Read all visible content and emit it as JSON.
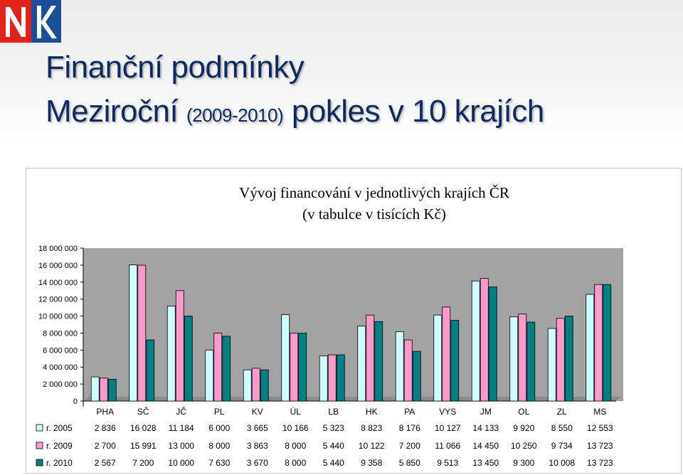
{
  "slide": {
    "title_line1": "Finanční podmínky",
    "title_line2_a": "Meziroční",
    "title_line2_b": "(2009-2010)",
    "title_line2_c": "pokles v 10 krajích"
  },
  "logo": {
    "icon": "nk-logo-icon",
    "colors": {
      "red": "#e2231a",
      "blue": "#1b4f9c"
    }
  },
  "chart_data": {
    "type": "bar",
    "title": "Vývoj financování v jednotlivých krajích ČR",
    "subtitle": "(v tabulce v tisících Kč)",
    "categories": [
      "PHA",
      "SČ",
      "JČ",
      "PL",
      "KV",
      "ÚL",
      "LB",
      "HK",
      "PA",
      "VYS",
      "JM",
      "OL",
      "ZL",
      "MS"
    ],
    "ylim": [
      0,
      18000000
    ],
    "yticks": [
      0,
      2000000,
      4000000,
      6000000,
      8000000,
      10000000,
      12000000,
      14000000,
      16000000,
      18000000
    ],
    "ytick_labels": [
      "0",
      "2 000 000",
      "4 000 000",
      "6 000 000",
      "8 000 000",
      "10 000 000",
      "12 000 000",
      "14 000 000",
      "16 000 000",
      "18 000 000"
    ],
    "grid": false,
    "legend": "data-table",
    "series": [
      {
        "name": "r. 2005",
        "color": "#ccffff",
        "values": [
          2836000,
          16028000,
          11184000,
          6000000,
          3665000,
          10166000,
          5323000,
          8823000,
          8176000,
          10127000,
          14133000,
          9920000,
          8550000,
          12553000
        ],
        "labels": [
          "2 836",
          "16 028",
          "11 184",
          "6 000",
          "3 665",
          "10 166",
          "5 323",
          "8 823",
          "8 176",
          "10 127",
          "14 133",
          "9 920",
          "8 550",
          "12 553"
        ]
      },
      {
        "name": "r. 2009",
        "color": "#ff99cc",
        "values": [
          2700000,
          15991000,
          13000000,
          8000000,
          3863000,
          8000000,
          5440000,
          10122000,
          7200000,
          11066000,
          14450000,
          10250000,
          9734000,
          13723000
        ],
        "labels": [
          "2 700",
          "15 991",
          "13 000",
          "8 000",
          "3 863",
          "8 000",
          "5 440",
          "10 122",
          "7 200",
          "11 066",
          "14 450",
          "10 250",
          "9 734",
          "13 723"
        ]
      },
      {
        "name": "r. 2010",
        "color": "#008080",
        "values": [
          2567000,
          7200000,
          10000000,
          7630000,
          3670000,
          8000000,
          5440000,
          9358000,
          5850000,
          9513000,
          13450000,
          9300000,
          10008000,
          13723000
        ],
        "labels": [
          "2 567",
          "7 200",
          "10 000",
          "7 630",
          "3 670",
          "8 000",
          "5 440",
          "9 358",
          "5 850",
          "9 513",
          "13 450",
          "9 300",
          "10 008",
          "13 723"
        ]
      }
    ],
    "colors": {
      "plot_bg": "#a3a3a3",
      "bar_edge": "#000000"
    }
  }
}
